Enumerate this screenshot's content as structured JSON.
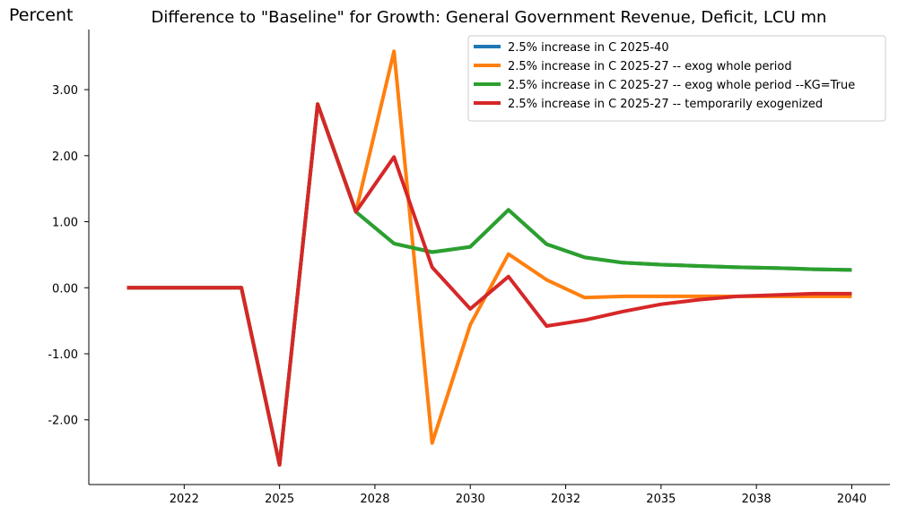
{
  "chart_data": {
    "type": "line",
    "title": "Difference to \"Baseline\" for Growth: General Government Revenue, Deficit, LCU mn",
    "ylabel": "Percent",
    "xlabel": "",
    "x": [
      2021,
      2022,
      2023,
      2024,
      2025,
      2026,
      2027,
      2028,
      2029,
      2030,
      2031,
      2032,
      2033,
      2034,
      2035,
      2036,
      2037,
      2038,
      2039,
      2040
    ],
    "xticks": [
      {
        "value": 2022.5,
        "label": "2022"
      },
      {
        "value": 2025,
        "label": "2025"
      },
      {
        "value": 2027.5,
        "label": "2028"
      },
      {
        "value": 2030,
        "label": "2030"
      },
      {
        "value": 2032.5,
        "label": "2032"
      },
      {
        "value": 2035,
        "label": "2035"
      },
      {
        "value": 2037.5,
        "label": "2038"
      },
      {
        "value": 2040,
        "label": "2040"
      }
    ],
    "yticks": [
      {
        "value": -2,
        "label": "-2.00"
      },
      {
        "value": -1,
        "label": "-1.00"
      },
      {
        "value": 0,
        "label": "0.00"
      },
      {
        "value": 1,
        "label": "1.00"
      },
      {
        "value": 2,
        "label": "2.00"
      },
      {
        "value": 3,
        "label": "3.00"
      }
    ],
    "xlim": [
      2020.0,
      2041.0
    ],
    "ylim": [
      -2.98,
      3.91
    ],
    "grid": false,
    "legend_position": "top-right",
    "series": [
      {
        "name": "2.5% increase in C 2025-40",
        "color": "#1f77b4",
        "values": [
          0,
          0,
          0,
          0,
          -2.68,
          2.78,
          1.15,
          0.67,
          0.54,
          0.62,
          1.18,
          0.66,
          0.46,
          0.38,
          0.35,
          0.33,
          0.31,
          0.3,
          0.28,
          0.27
        ]
      },
      {
        "name": "2.5% increase in C 2025-27 -- exog whole period",
        "color": "#ff7f0e",
        "values": [
          0,
          0,
          0,
          0,
          -2.68,
          2.78,
          1.15,
          3.58,
          -2.35,
          -0.56,
          0.51,
          0.12,
          -0.15,
          -0.13,
          -0.13,
          -0.13,
          -0.13,
          -0.13,
          -0.13,
          -0.13
        ]
      },
      {
        "name": "2.5% increase in C 2025-27 -- exog whole period --KG=True",
        "color": "#2ca02c",
        "values": [
          0,
          0,
          0,
          0,
          -2.68,
          2.78,
          1.15,
          0.67,
          0.54,
          0.62,
          1.18,
          0.66,
          0.46,
          0.38,
          0.35,
          0.33,
          0.31,
          0.3,
          0.28,
          0.27
        ]
      },
      {
        "name": "2.5% increase in C 2025-27 -- temporarily exogenized",
        "color": "#d62728",
        "values": [
          0,
          0,
          0,
          0,
          -2.68,
          2.78,
          1.15,
          1.98,
          0.31,
          -0.32,
          0.17,
          -0.58,
          -0.49,
          -0.36,
          -0.25,
          -0.18,
          -0.13,
          -0.11,
          -0.09,
          -0.09
        ]
      }
    ]
  }
}
